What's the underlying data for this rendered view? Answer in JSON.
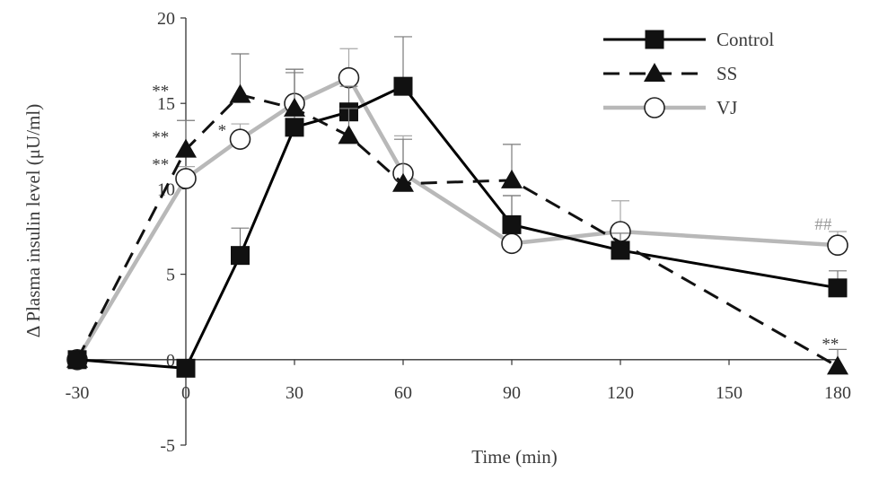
{
  "chart_data": {
    "type": "line",
    "xlabel": "Time (min)",
    "ylabel": "Δ Plasma insulin level (μU/ml)",
    "xlim": [
      -30,
      180
    ],
    "ylim": [
      -5,
      20
    ],
    "x_ticks": [
      -30,
      0,
      30,
      60,
      90,
      120,
      150,
      180
    ],
    "y_ticks": [
      -5,
      0,
      5,
      10,
      15,
      20
    ],
    "grid": false,
    "legend_position": "top-right",
    "series": [
      {
        "name": "Control",
        "color": "#000000",
        "line_style": "solid",
        "marker": "square",
        "x": [
          -30,
          0,
          15,
          30,
          45,
          60,
          90,
          120,
          180
        ],
        "y": [
          0,
          -0.5,
          6.1,
          13.6,
          14.5,
          16.0,
          7.9,
          6.4,
          4.2
        ],
        "error": [
          0,
          0,
          1.6,
          3.2,
          1.5,
          2.9,
          1.7,
          1.0,
          1.0
        ]
      },
      {
        "name": "SS",
        "color": "#111111",
        "line_style": "dashed",
        "marker": "triangle",
        "x": [
          -30,
          0,
          15,
          30,
          45,
          60,
          90,
          180
        ],
        "y": [
          0,
          12.3,
          15.5,
          14.7,
          13.1,
          10.3,
          10.5,
          -0.4
        ],
        "error": [
          0,
          1.7,
          2.4,
          2.3,
          1.6,
          2.6,
          2.1,
          1.0
        ]
      },
      {
        "name": "VJ",
        "color": "#b8b8b8",
        "line_style": "solid",
        "marker": "circle-open",
        "x": [
          -30,
          0,
          15,
          30,
          45,
          60,
          90,
          120,
          180
        ],
        "y": [
          0,
          10.6,
          12.9,
          15.0,
          16.5,
          10.9,
          6.8,
          7.5,
          6.7
        ],
        "error": [
          0,
          0.7,
          0.9,
          2.0,
          1.7,
          2.2,
          2.8,
          1.8,
          0.8
        ]
      }
    ],
    "annotations": [
      {
        "text": "**",
        "x": -7,
        "y": 15.4
      },
      {
        "text": "**",
        "x": -7,
        "y": 12.7
      },
      {
        "text": "**",
        "x": -7,
        "y": 11.1
      },
      {
        "text": "*",
        "x": 10,
        "y": 13.1
      },
      {
        "text": "##",
        "x": 176,
        "y": 7.6
      },
      {
        "text": "**",
        "x": 178,
        "y": 0.6
      }
    ]
  }
}
